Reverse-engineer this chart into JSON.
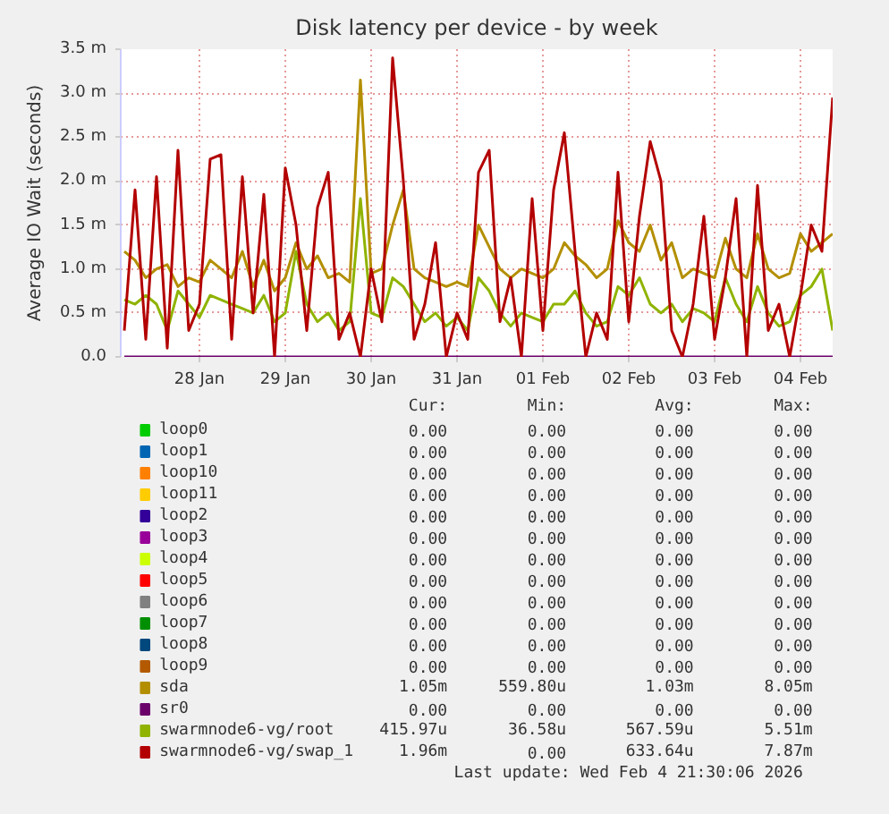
{
  "chart_data": {
    "type": "line",
    "title": "Disk latency per device - by week",
    "ylabel": "Average IO Wait (seconds)",
    "x": [
      "2026-01-27T15:00",
      "2026-01-27T18:00",
      "2026-01-27T21:00",
      "2026-01-28T00:00",
      "2026-01-28T03:00",
      "2026-01-28T06:00",
      "2026-01-28T09:00",
      "2026-01-28T12:00",
      "2026-01-28T15:00",
      "2026-01-28T18:00",
      "2026-01-28T21:00",
      "2026-01-29T00:00",
      "2026-01-29T03:00",
      "2026-01-29T06:00",
      "2026-01-29T09:00",
      "2026-01-29T12:00",
      "2026-01-29T15:00",
      "2026-01-29T18:00",
      "2026-01-29T21:00",
      "2026-01-30T00:00",
      "2026-01-30T03:00",
      "2026-01-30T06:00",
      "2026-01-30T09:00",
      "2026-01-30T12:00",
      "2026-01-30T15:00",
      "2026-01-30T18:00",
      "2026-01-30T21:00",
      "2026-01-31T00:00",
      "2026-01-31T03:00",
      "2026-01-31T06:00",
      "2026-01-31T09:00",
      "2026-01-31T12:00",
      "2026-01-31T15:00",
      "2026-01-31T18:00",
      "2026-01-31T21:00",
      "2026-02-01T00:00",
      "2026-02-01T03:00",
      "2026-02-01T06:00",
      "2026-02-01T09:00",
      "2026-02-01T12:00",
      "2026-02-01T15:00",
      "2026-02-01T18:00",
      "2026-02-01T21:00",
      "2026-02-02T00:00",
      "2026-02-02T03:00",
      "2026-02-02T06:00",
      "2026-02-02T09:00",
      "2026-02-02T12:00",
      "2026-02-02T15:00",
      "2026-02-02T18:00",
      "2026-02-02T21:00",
      "2026-02-03T00:00",
      "2026-02-03T03:00",
      "2026-02-03T06:00",
      "2026-02-03T09:00",
      "2026-02-03T12:00",
      "2026-02-03T15:00",
      "2026-02-03T18:00",
      "2026-02-03T21:00",
      "2026-02-04T00:00",
      "2026-02-04T03:00",
      "2026-02-04T06:00",
      "2026-02-04T09:00",
      "2026-02-04T12:00",
      "2026-02-04T15:00",
      "2026-02-04T18:00",
      "2026-02-04T21:00"
    ],
    "xlim": [
      "2026-01-27T14:00",
      "2026-02-04T21:00"
    ],
    "xticks": [
      {
        "value": "2026-01-28T12:00",
        "label": "28 Jan"
      },
      {
        "value": "2026-01-29T12:00",
        "label": "29 Jan"
      },
      {
        "value": "2026-01-30T12:00",
        "label": "30 Jan"
      },
      {
        "value": "2026-01-31T12:00",
        "label": "31 Jan"
      },
      {
        "value": "2026-02-01T12:00",
        "label": "01 Feb"
      },
      {
        "value": "2026-02-02T12:00",
        "label": "02 Feb"
      },
      {
        "value": "2026-02-03T12:00",
        "label": "03 Feb"
      },
      {
        "value": "2026-02-04T12:00",
        "label": "04 Feb"
      }
    ],
    "ylim": [
      0,
      3.5
    ],
    "yticks": [
      {
        "value": 0,
        "label": "0.0"
      },
      {
        "value": 0.5,
        "label": "0.5 m"
      },
      {
        "value": 1,
        "label": "1.0 m"
      },
      {
        "value": 1.5,
        "label": "1.5 m"
      },
      {
        "value": 2,
        "label": "2.0 m"
      },
      {
        "value": 2.5,
        "label": "2.5 m"
      },
      {
        "value": 3,
        "label": "3.0 m"
      },
      {
        "value": 3.5,
        "label": "3.5 m"
      }
    ],
    "grid": true,
    "legend": "bottom",
    "marker": "none",
    "line_style": "solid",
    "series": [
      {
        "name": "loop0",
        "color": "#00cc00",
        "values": [
          null,
          null,
          null,
          null,
          null,
          null,
          null,
          null,
          null,
          null,
          null,
          null,
          null,
          null,
          null,
          null,
          null,
          null,
          null,
          null,
          null,
          null,
          null,
          null,
          null,
          null,
          null,
          null,
          null,
          null,
          null,
          null,
          null,
          null,
          null,
          null,
          null,
          null,
          null,
          null,
          null,
          null,
          null,
          null,
          null,
          null,
          null,
          null,
          null,
          null,
          null,
          null,
          null,
          null,
          null,
          null,
          null,
          null,
          null,
          null,
          null,
          null,
          null,
          null,
          null,
          null,
          null
        ]
      },
      {
        "name": "loop1",
        "color": "#0066b3",
        "values": [
          null,
          null,
          null,
          null,
          null,
          null,
          null,
          null,
          null,
          null,
          null,
          null,
          null,
          null,
          null,
          null,
          null,
          null,
          null,
          null,
          null,
          null,
          null,
          null,
          null,
          null,
          null,
          null,
          null,
          null,
          null,
          null,
          null,
          null,
          null,
          null,
          null,
          null,
          null,
          null,
          null,
          null,
          null,
          null,
          null,
          null,
          null,
          null,
          null,
          null,
          null,
          null,
          null,
          null,
          null,
          null,
          null,
          null,
          null,
          null,
          null,
          null,
          null,
          null,
          null,
          null,
          null
        ]
      },
      {
        "name": "loop10",
        "color": "#ff8000",
        "values": [
          null,
          null,
          null,
          null,
          null,
          null,
          null,
          null,
          null,
          null,
          null,
          null,
          null,
          null,
          null,
          null,
          null,
          null,
          null,
          null,
          null,
          null,
          null,
          null,
          null,
          null,
          null,
          null,
          null,
          null,
          null,
          null,
          null,
          null,
          null,
          null,
          null,
          null,
          null,
          null,
          null,
          null,
          null,
          null,
          null,
          null,
          null,
          null,
          null,
          null,
          null,
          null,
          null,
          null,
          null,
          null,
          null,
          null,
          null,
          null,
          null,
          null,
          null,
          null,
          null,
          null,
          null
        ]
      },
      {
        "name": "loop11",
        "color": "#ffcc00",
        "values": [
          null,
          null,
          null,
          null,
          null,
          null,
          null,
          null,
          null,
          null,
          null,
          null,
          null,
          null,
          null,
          null,
          null,
          null,
          null,
          null,
          null,
          null,
          null,
          null,
          null,
          null,
          null,
          null,
          null,
          null,
          null,
          null,
          null,
          null,
          null,
          null,
          null,
          null,
          null,
          null,
          null,
          null,
          null,
          null,
          null,
          null,
          null,
          null,
          null,
          null,
          null,
          null,
          null,
          null,
          null,
          null,
          null,
          null,
          null,
          null,
          null,
          null,
          null,
          null,
          null,
          null,
          null
        ]
      },
      {
        "name": "loop2",
        "color": "#330099",
        "values": [
          null,
          null,
          null,
          null,
          null,
          null,
          null,
          null,
          null,
          null,
          null,
          null,
          null,
          null,
          null,
          null,
          null,
          null,
          null,
          null,
          null,
          null,
          null,
          null,
          null,
          null,
          null,
          null,
          null,
          null,
          null,
          null,
          null,
          null,
          null,
          null,
          null,
          null,
          null,
          null,
          null,
          null,
          null,
          null,
          null,
          null,
          null,
          null,
          null,
          null,
          null,
          null,
          null,
          null,
          null,
          null,
          null,
          null,
          null,
          null,
          null,
          null,
          null,
          null,
          null,
          null,
          null
        ]
      },
      {
        "name": "loop3",
        "color": "#990099",
        "values": [
          null,
          null,
          null,
          null,
          null,
          null,
          null,
          null,
          null,
          null,
          null,
          null,
          null,
          null,
          null,
          null,
          null,
          null,
          null,
          null,
          null,
          null,
          null,
          null,
          null,
          null,
          null,
          null,
          null,
          null,
          null,
          null,
          null,
          null,
          null,
          null,
          null,
          null,
          null,
          null,
          null,
          null,
          null,
          null,
          null,
          null,
          null,
          null,
          null,
          null,
          null,
          null,
          null,
          null,
          null,
          null,
          null,
          null,
          null,
          null,
          null,
          null,
          null,
          null,
          null,
          null,
          null
        ]
      },
      {
        "name": "loop4",
        "color": "#ccff00",
        "values": [
          null,
          null,
          null,
          null,
          null,
          null,
          null,
          null,
          null,
          null,
          null,
          null,
          null,
          null,
          null,
          null,
          null,
          null,
          null,
          null,
          null,
          null,
          null,
          null,
          null,
          null,
          null,
          null,
          null,
          null,
          null,
          null,
          null,
          null,
          null,
          null,
          null,
          null,
          null,
          null,
          null,
          null,
          null,
          null,
          null,
          null,
          null,
          null,
          null,
          null,
          null,
          null,
          null,
          null,
          null,
          null,
          null,
          null,
          null,
          null,
          null,
          null,
          null,
          null,
          null,
          null,
          null
        ]
      },
      {
        "name": "loop5",
        "color": "#ff0000",
        "values": [
          null,
          null,
          null,
          null,
          null,
          null,
          null,
          null,
          null,
          null,
          null,
          null,
          null,
          null,
          null,
          null,
          null,
          null,
          null,
          null,
          null,
          null,
          null,
          null,
          null,
          null,
          null,
          null,
          null,
          null,
          null,
          null,
          null,
          null,
          null,
          null,
          null,
          null,
          null,
          null,
          null,
          null,
          null,
          null,
          null,
          null,
          null,
          null,
          null,
          null,
          null,
          null,
          null,
          null,
          null,
          null,
          null,
          null,
          null,
          null,
          null,
          null,
          null,
          null,
          null,
          null,
          null
        ]
      },
      {
        "name": "loop6",
        "color": "#808080",
        "values": [
          null,
          null,
          null,
          null,
          null,
          null,
          null,
          null,
          null,
          null,
          null,
          null,
          null,
          null,
          null,
          null,
          null,
          null,
          null,
          null,
          null,
          null,
          null,
          null,
          null,
          null,
          null,
          null,
          null,
          null,
          null,
          null,
          null,
          null,
          null,
          null,
          null,
          null,
          null,
          null,
          null,
          null,
          null,
          null,
          null,
          null,
          null,
          null,
          null,
          null,
          null,
          null,
          null,
          null,
          null,
          null,
          null,
          null,
          null,
          null,
          null,
          null,
          null,
          null,
          null,
          null,
          null
        ]
      },
      {
        "name": "loop7",
        "color": "#008f00",
        "values": [
          null,
          null,
          null,
          null,
          null,
          null,
          null,
          null,
          null,
          null,
          null,
          null,
          null,
          null,
          null,
          null,
          null,
          null,
          null,
          null,
          null,
          null,
          null,
          null,
          null,
          null,
          null,
          null,
          null,
          null,
          null,
          null,
          null,
          null,
          null,
          null,
          null,
          null,
          null,
          null,
          null,
          null,
          null,
          null,
          null,
          null,
          null,
          null,
          null,
          null,
          null,
          null,
          null,
          null,
          null,
          null,
          null,
          null,
          null,
          null,
          null,
          null,
          null,
          null,
          null,
          null,
          null
        ]
      },
      {
        "name": "loop8",
        "color": "#00487d",
        "values": [
          null,
          null,
          null,
          null,
          null,
          null,
          null,
          null,
          null,
          null,
          null,
          null,
          null,
          null,
          null,
          null,
          null,
          null,
          null,
          null,
          null,
          null,
          null,
          null,
          null,
          null,
          null,
          null,
          null,
          null,
          null,
          null,
          null,
          null,
          null,
          null,
          null,
          null,
          null,
          null,
          null,
          null,
          null,
          null,
          null,
          null,
          null,
          null,
          null,
          null,
          null,
          null,
          null,
          null,
          null,
          null,
          null,
          null,
          null,
          null,
          null,
          null,
          null,
          null,
          null,
          null,
          null
        ]
      },
      {
        "name": "loop9",
        "color": "#b35a00",
        "values": [
          null,
          null,
          null,
          null,
          null,
          null,
          null,
          null,
          null,
          null,
          null,
          null,
          null,
          null,
          null,
          null,
          null,
          null,
          null,
          null,
          null,
          null,
          null,
          null,
          null,
          null,
          null,
          null,
          null,
          null,
          null,
          null,
          null,
          null,
          null,
          null,
          null,
          null,
          null,
          null,
          null,
          null,
          null,
          null,
          null,
          null,
          null,
          null,
          null,
          null,
          null,
          null,
          null,
          null,
          null,
          null,
          null,
          null,
          null,
          null,
          null,
          null,
          null,
          null,
          null,
          null,
          null
        ]
      },
      {
        "name": "sda",
        "color": "#b38f00",
        "values": [
          1.2,
          1.1,
          0.9,
          1.0,
          1.05,
          0.8,
          0.9,
          0.85,
          1.1,
          1.0,
          0.9,
          1.2,
          0.8,
          1.1,
          0.75,
          0.9,
          1.3,
          1.0,
          1.15,
          0.9,
          0.95,
          0.85,
          3.15,
          0.95,
          1.0,
          1.5,
          1.9,
          1.0,
          0.9,
          0.85,
          0.8,
          0.85,
          0.8,
          1.5,
          1.25,
          1.0,
          0.9,
          1.0,
          0.95,
          0.9,
          1.0,
          1.3,
          1.15,
          1.05,
          0.9,
          1.0,
          1.55,
          1.3,
          1.2,
          1.5,
          1.1,
          1.3,
          0.9,
          1.0,
          0.95,
          0.9,
          1.35,
          1.0,
          0.9,
          1.4,
          1.0,
          0.9,
          0.95,
          1.4,
          1.2,
          1.3,
          1.4
        ]
      },
      {
        "name": "sr0",
        "color": "#6b006b",
        "x": [
          "2026-01-27T15:00",
          "2026-02-04T21:00"
        ],
        "values": [
          0,
          0
        ]
      },
      {
        "name": "swarmnode6-vg/root",
        "color": "#8fb300",
        "values": [
          0.65,
          0.6,
          0.7,
          0.6,
          0.3,
          0.75,
          0.6,
          0.45,
          0.7,
          0.65,
          0.6,
          0.55,
          0.5,
          0.7,
          0.4,
          0.5,
          1.2,
          0.6,
          0.4,
          0.5,
          0.3,
          0.4,
          1.8,
          0.5,
          0.45,
          0.9,
          0.8,
          0.6,
          0.4,
          0.5,
          0.35,
          0.45,
          0.3,
          0.9,
          0.75,
          0.5,
          0.35,
          0.5,
          0.45,
          0.4,
          0.6,
          0.6,
          0.75,
          0.5,
          0.35,
          0.4,
          0.8,
          0.7,
          0.9,
          0.6,
          0.5,
          0.6,
          0.4,
          0.55,
          0.5,
          0.4,
          0.9,
          0.6,
          0.4,
          0.8,
          0.5,
          0.35,
          0.4,
          0.7,
          0.8,
          1.0,
          0.3
        ]
      },
      {
        "name": "swarmnode6-vg/swap_1",
        "color": "#b30000",
        "values": [
          0.3,
          1.9,
          0.2,
          2.05,
          0.1,
          2.35,
          0.3,
          0.6,
          2.25,
          2.3,
          0.2,
          2.05,
          0.5,
          1.85,
          0.0,
          2.15,
          1.5,
          0.3,
          1.7,
          2.1,
          0.2,
          0.5,
          0.0,
          1.0,
          0.4,
          3.4,
          2.0,
          0.2,
          0.6,
          1.3,
          0.0,
          0.5,
          0.2,
          2.1,
          2.35,
          0.4,
          0.9,
          0.0,
          1.8,
          0.3,
          1.9,
          2.55,
          1.2,
          0.0,
          0.5,
          0.2,
          2.1,
          0.4,
          1.6,
          2.45,
          2.0,
          0.3,
          0.0,
          0.6,
          1.6,
          0.2,
          0.9,
          1.8,
          0.0,
          1.95,
          0.3,
          0.6,
          0.0,
          0.7,
          1.5,
          1.2,
          2.95
        ]
      }
    ],
    "annotations": [
      "Cur:",
      "Min:",
      "Avg:",
      "Max:",
      "0.00",
      "0.00",
      "0.00",
      "0.00",
      "0.00",
      "0.00",
      "0.00",
      "0.00",
      "0.00",
      "0.00",
      "0.00",
      "0.00",
      "0.00",
      "0.00",
      "0.00",
      "0.00",
      "0.00",
      "0.00",
      "0.00",
      "0.00",
      "0.00",
      "0.00",
      "0.00",
      "0.00",
      "0.00",
      "0.00",
      "0.00",
      "0.00",
      "0.00",
      "0.00",
      "0.00",
      "0.00",
      "0.00",
      "0.00",
      "0.00",
      "0.00",
      "0.00",
      "0.00",
      "0.00",
      "0.00",
      "0.00",
      "0.00",
      "0.00",
      "0.00",
      "0.00",
      "0.00",
      "0.00",
      "0.00",
      "1.05m",
      "559.80u",
      "1.03m",
      "8.05m",
      "0.00",
      "0.00",
      "0.00",
      "0.00",
      "415.97u",
      "36.58u",
      "567.59u",
      "5.51m",
      "1.96m",
      "0.00",
      "633.64u",
      "7.87m",
      "Last update: Wed Feb  4 21:30:06 2026"
    ]
  }
}
